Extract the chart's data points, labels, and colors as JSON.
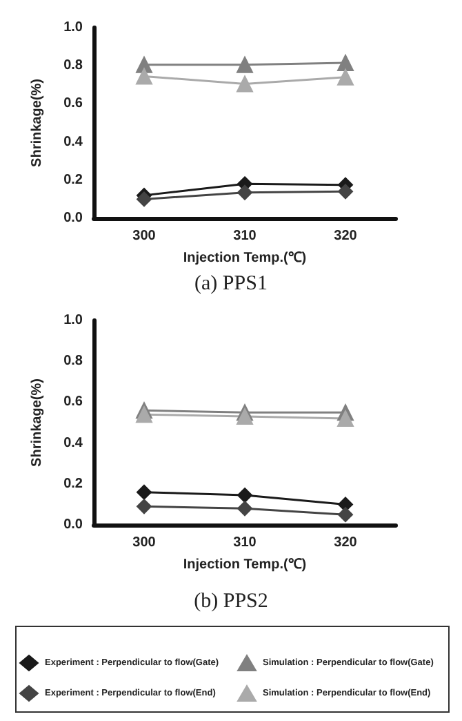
{
  "chart_data": [
    {
      "type": "line",
      "title": "(a) PPS1",
      "xlabel": "Injection Temp.(℃)",
      "ylabel": "Shrinkage(%)",
      "categories": [
        "300",
        "310",
        "320"
      ],
      "ylim": [
        0,
        1
      ],
      "yticks": [
        {
          "value": 0,
          "label": "0.0"
        },
        {
          "value": 0.2,
          "label": "0.2"
        },
        {
          "value": 0.4,
          "label": "0.4"
        },
        {
          "value": 0.6,
          "label": "0.6"
        },
        {
          "value": 0.8,
          "label": "0.8"
        },
        {
          "value": 1,
          "label": "1.0"
        }
      ],
      "grid": false,
      "legend": false,
      "line_style": "solid",
      "series": [
        {
          "color": "#1a1a1a",
          "marker": "diamond",
          "values": [
            0.12,
            0.18,
            0.175
          ]
        },
        {
          "color": "#444444",
          "marker": "diamond",
          "values": [
            0.1,
            0.135,
            0.14
          ]
        },
        {
          "color": "#808080",
          "marker": "triangle",
          "values": [
            0.805,
            0.805,
            0.815
          ]
        },
        {
          "color": "#aaaaaa",
          "marker": "triangle",
          "values": [
            0.745,
            0.705,
            0.74
          ]
        }
      ]
    },
    {
      "type": "line",
      "title": "(b) PPS2",
      "xlabel": "Injection Temp.(℃)",
      "ylabel": "Shrinkage(%)",
      "categories": [
        "300",
        "310",
        "320"
      ],
      "ylim": [
        0,
        1
      ],
      "yticks": [
        {
          "value": 0,
          "label": "0.0"
        },
        {
          "value": 0.2,
          "label": "0.2"
        },
        {
          "value": 0.4,
          "label": "0.4"
        },
        {
          "value": 0.6,
          "label": "0.6"
        },
        {
          "value": 0.8,
          "label": "0.8"
        },
        {
          "value": 1,
          "label": "1.0"
        }
      ],
      "grid": false,
      "legend": "bottom",
      "line_style": "solid",
      "series": [
        {
          "name": "Experiment : Perpendicular to flow(Gate)",
          "color": "#1a1a1a",
          "marker": "diamond",
          "values": [
            0.16,
            0.145,
            0.1
          ]
        },
        {
          "name": "Experiment : Perpendicular to flow(End)",
          "color": "#444444",
          "marker": "diamond",
          "values": [
            0.09,
            0.08,
            0.05
          ]
        },
        {
          "name": "Simulation : Perpendicular to flow(Gate)",
          "color": "#808080",
          "marker": "triangle",
          "values": [
            0.56,
            0.55,
            0.55
          ]
        },
        {
          "name": "Simulation : Perpendicular to flow(End)",
          "color": "#aaaaaa",
          "marker": "triangle",
          "values": [
            0.54,
            0.53,
            0.52
          ]
        }
      ]
    }
  ]
}
